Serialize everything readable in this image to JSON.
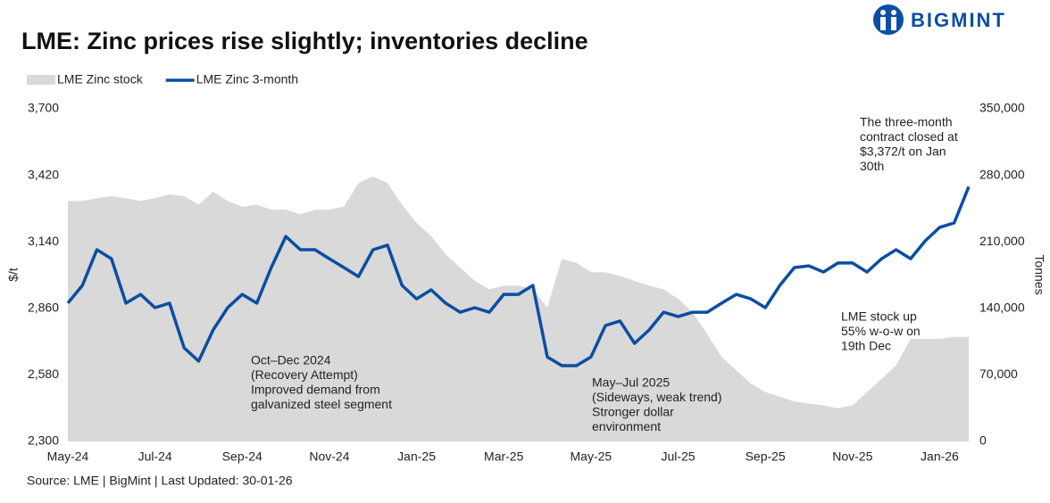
{
  "brand": "BIGMINT",
  "chart_data": {
    "type": "line",
    "title": "LME: Zinc prices rise slightly; inventories decline",
    "ylabel": "$/t",
    "y2label": "Tonnes",
    "source": "Source: LME | BigMint | Last Updated: 30-01-26",
    "categories": [
      "May-24",
      null,
      null,
      null,
      null,
      null,
      "Jul-24",
      null,
      null,
      null,
      null,
      null,
      "Sep-24",
      null,
      null,
      null,
      null,
      null,
      "Nov-24",
      null,
      null,
      null,
      null,
      null,
      "Jan-25",
      null,
      null,
      null,
      null,
      null,
      "Mar-25",
      null,
      null,
      null,
      null,
      null,
      "May-25",
      null,
      null,
      null,
      null,
      null,
      "Jul-25",
      null,
      null,
      null,
      null,
      null,
      "Sep-25",
      null,
      null,
      null,
      null,
      null,
      "Nov-25",
      null,
      null,
      null,
      null,
      null,
      "Jan-26",
      null,
      null
    ],
    "series": [
      {
        "name": "LME Zinc stock",
        "type": "area",
        "axis": "y2",
        "color": "#d9d9d9",
        "values": [
          253000,
          253000,
          256000,
          258000,
          256000,
          253000,
          256000,
          260000,
          258000,
          249000,
          263000,
          253000,
          247000,
          249000,
          244000,
          244000,
          239000,
          244000,
          244000,
          247000,
          272000,
          279000,
          272000,
          249000,
          230000,
          216000,
          197000,
          183000,
          169000,
          160000,
          164000,
          164000,
          160000,
          141000,
          192000,
          188000,
          178000,
          178000,
          174000,
          169000,
          164000,
          160000,
          150000,
          136000,
          113000,
          89000,
          75000,
          61000,
          52000,
          47000,
          42000,
          40000,
          38000,
          35000,
          38000,
          52000,
          66000,
          80000,
          108000,
          108000,
          108000,
          110000,
          110000
        ]
      },
      {
        "name": "LME Zinc 3-month",
        "type": "line",
        "axis": "y",
        "color": "#0b4ea2",
        "values": [
          2882,
          2957,
          3107,
          3069,
          2882,
          2919,
          2863,
          2882,
          2694,
          2638,
          2769,
          2863,
          2919,
          2882,
          3032,
          3163,
          3107,
          3107,
          3069,
          3032,
          2994,
          3107,
          3126,
          2957,
          2900,
          2938,
          2882,
          2844,
          2863,
          2844,
          2919,
          2919,
          2957,
          2656,
          2619,
          2619,
          2656,
          2788,
          2807,
          2713,
          2769,
          2844,
          2826,
          2844,
          2844,
          2882,
          2919,
          2900,
          2863,
          2957,
          3032,
          3039,
          3013,
          3051,
          3051,
          3013,
          3069,
          3107,
          3069,
          3144,
          3201,
          3220,
          3372
        ]
      }
    ],
    "ylim": [
      2300,
      3700
    ],
    "yticks": [
      {
        "value": 2300,
        "label": "2,300"
      },
      {
        "value": 2580,
        "label": "2,580"
      },
      {
        "value": 2860,
        "label": "2,860"
      },
      {
        "value": 3140,
        "label": "3,140"
      },
      {
        "value": 3420,
        "label": "3,420"
      },
      {
        "value": 3700,
        "label": "3,700"
      }
    ],
    "y2lim": [
      0,
      350000
    ],
    "y2ticks": [
      0,
      {
        "value": 70000,
        "label": "70,000"
      },
      {
        "value": 140000,
        "label": "140,000"
      },
      {
        "value": 210000,
        "label": "210,000"
      },
      {
        "value": 280000,
        "label": "280,000"
      },
      {
        "value": 350000,
        "label": "350,000"
      }
    ],
    "grid": false,
    "legend": "top-left",
    "annotations": [
      [
        "Oct–Dec 2024",
        "(Recovery Attempt)",
        "Improved demand from",
        "galvanized steel segment"
      ],
      [
        "May–Jul 2025",
        "(Sideways, weak trend)",
        "Stronger dollar",
        "environment"
      ],
      [
        "The three-month",
        "contract closed at",
        "$3,372/t on Jan",
        "30th"
      ],
      [
        "LME stock up",
        "55% w-o-w on",
        "19th Dec"
      ]
    ]
  }
}
